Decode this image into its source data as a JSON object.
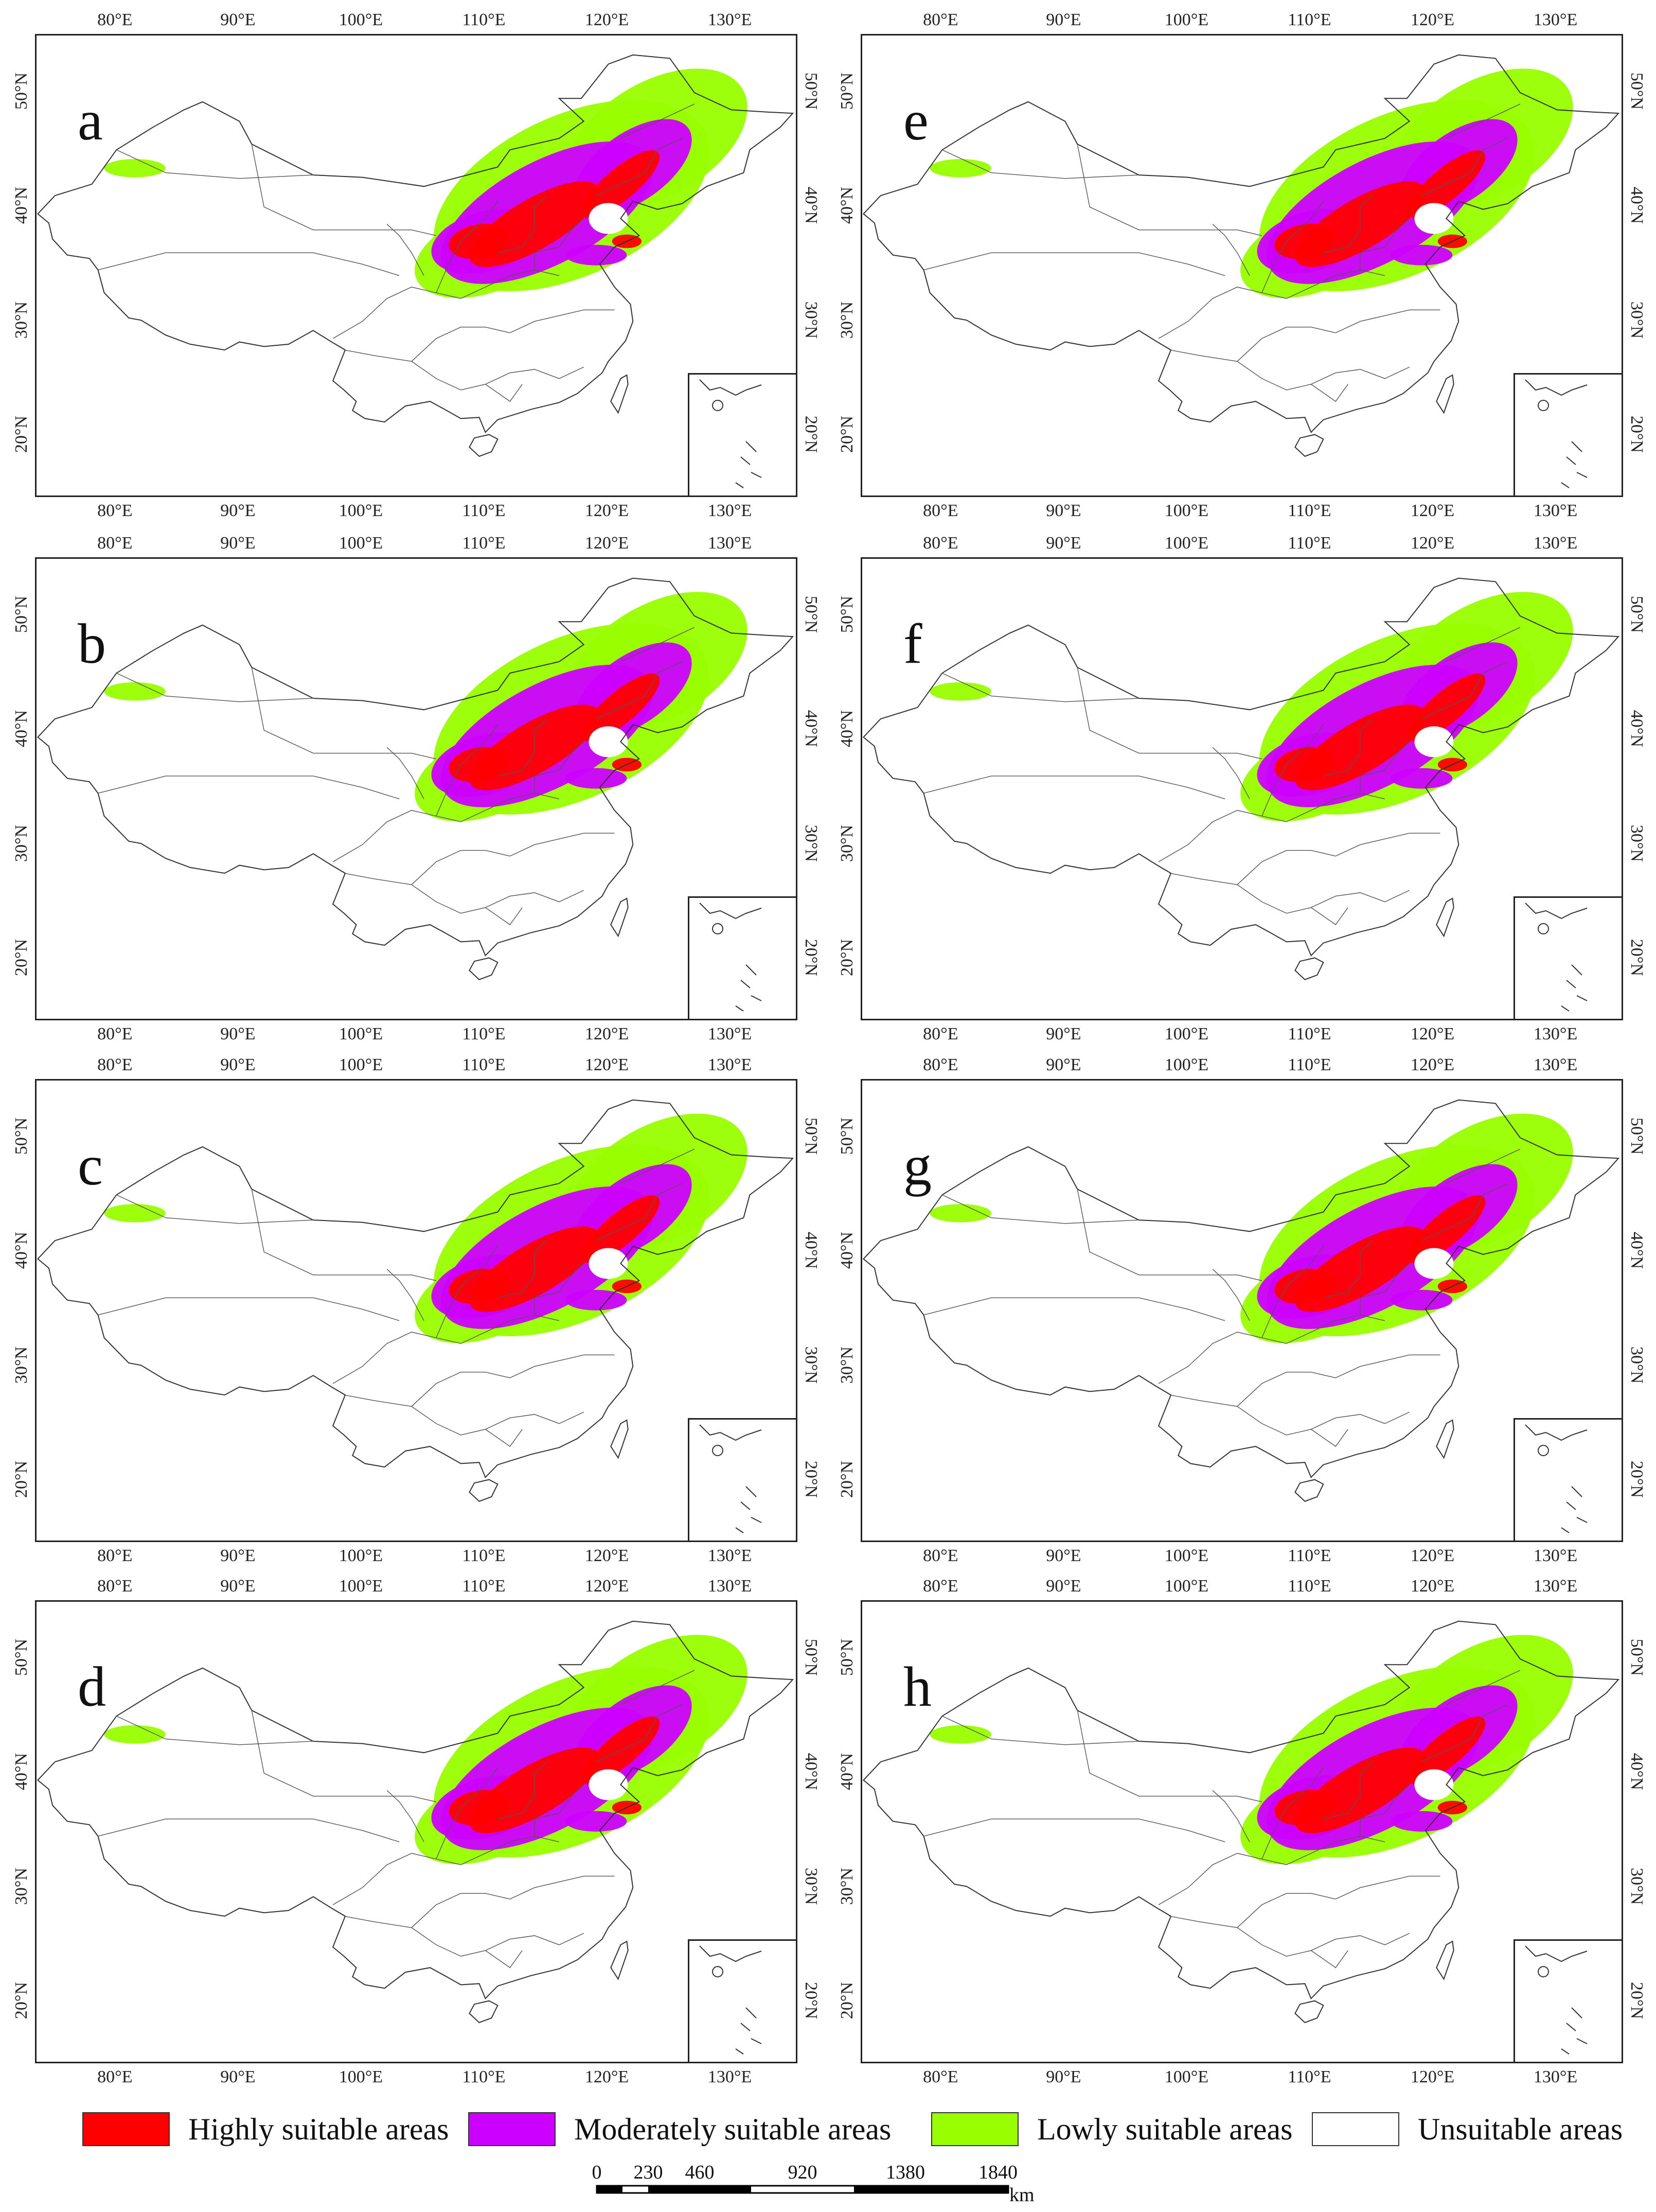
{
  "panels": [
    {
      "id": "a",
      "label": "a"
    },
    {
      "id": "b",
      "label": "b"
    },
    {
      "id": "c",
      "label": "c"
    },
    {
      "id": "d",
      "label": "d"
    },
    {
      "id": "e",
      "label": "e"
    },
    {
      "id": "f",
      "label": "f"
    },
    {
      "id": "g",
      "label": "g"
    },
    {
      "id": "h",
      "label": "h"
    }
  ],
  "lon_ticks": [
    "80°E",
    "90°E",
    "100°E",
    "110°E",
    "120°E",
    "130°E"
  ],
  "lat_ticks": [
    "50°N",
    "40°N",
    "30°N",
    "20°N"
  ],
  "legend": {
    "high": {
      "label": "Highly suitable areas",
      "color": "#ff0000"
    },
    "moderate": {
      "label": "Moderately suitable areas",
      "color": "#cc00ff"
    },
    "low": {
      "label": "Lowly suitable areas",
      "color": "#99ff00"
    },
    "unsuitable": {
      "label": "Unsuitable areas",
      "color": "#ffffff"
    }
  },
  "scale_bar": {
    "labels": [
      "0",
      "230",
      "460",
      "920",
      "1380",
      "1840"
    ],
    "unit": "km"
  }
}
